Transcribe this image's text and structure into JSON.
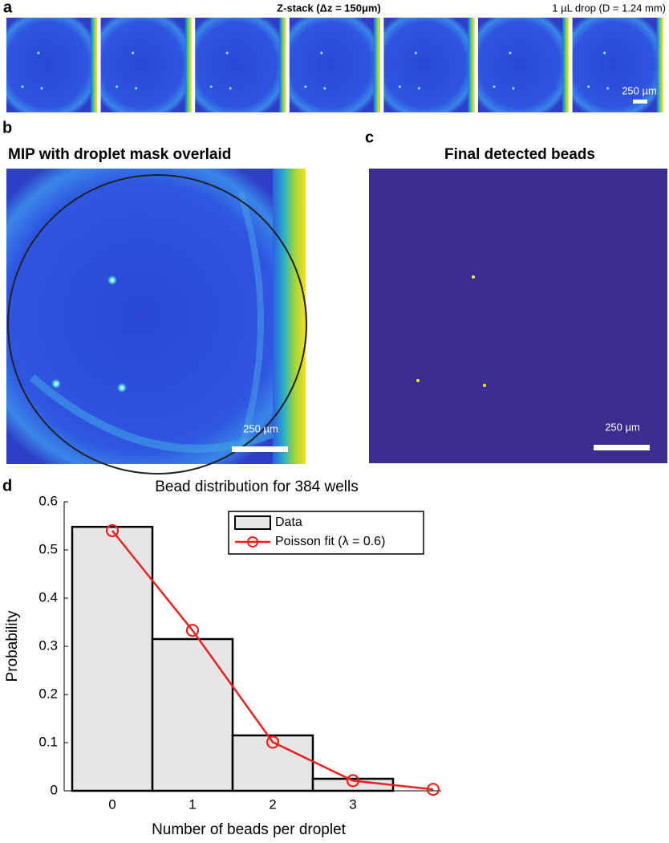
{
  "panels": {
    "a": {
      "label": "a",
      "title": "Z-stack (Δz = 150μm)",
      "note": "1 µL drop (D = 1.24 mm)",
      "scale": "250 µm"
    },
    "b": {
      "label": "b",
      "title": "MIP with droplet mask overlaid",
      "scale": "250 µm"
    },
    "c": {
      "label": "c",
      "title": "Final detected beads",
      "scale": "250 µm"
    },
    "d": {
      "label": "d"
    }
  },
  "chart_data": {
    "type": "bar",
    "title": "Bead distribution for 384 wells",
    "x_label": "Number of beads per droplet",
    "y_label": "Probability",
    "series": [
      {
        "name": "Data",
        "type": "bar",
        "color": "#e6e6e6",
        "x": [
          0,
          1,
          2,
          3
        ],
        "values": [
          0.548,
          0.315,
          0.115,
          0.025
        ]
      },
      {
        "name": "Poisson fit (λ = 0.6)",
        "type": "line",
        "color": "#e8231f",
        "x": [
          0,
          1,
          2,
          3,
          4
        ],
        "values": [
          0.54,
          0.333,
          0.101,
          0.021,
          0.003
        ]
      }
    ],
    "xlim": [
      -0.6,
      4.1
    ],
    "xticks": [
      0,
      1,
      2,
      3
    ],
    "ylim": [
      0,
      0.6
    ],
    "yticks": [
      0,
      0.1,
      0.2,
      0.3,
      0.4,
      0.5,
      0.6
    ],
    "legend": "upper right",
    "grid": false
  }
}
